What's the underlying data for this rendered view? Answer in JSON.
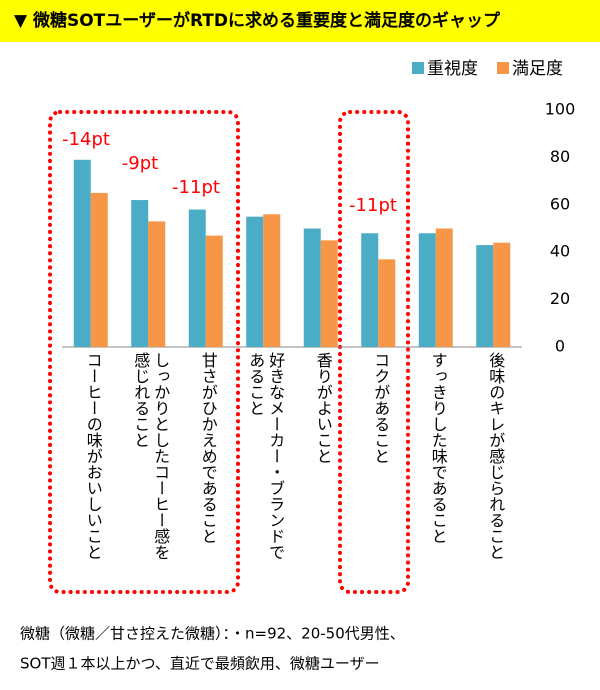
{
  "chart_data": {
    "type": "bar",
    "title": "▼ 微糖SOTユーザーがRTDに求める重要度と満足度のギャップ",
    "categories": [
      "コーヒーの味がおいしいこと",
      "しっかりとしたコーヒー感を感じれること",
      "甘さがひかえめであること",
      "好きなメーカー・ブランドであること",
      "香りがよいこと",
      "コクがあること",
      "すっきりした味であること",
      "後味のキレが感じられること"
    ],
    "series": [
      {
        "name": "重視度",
        "color": "#4bacc6",
        "values": [
          79,
          62,
          58,
          55,
          50,
          48,
          48,
          43
        ]
      },
      {
        "name": "満足度",
        "color": "#f79646",
        "values": [
          65,
          53,
          47,
          56,
          45,
          37,
          50,
          44
        ]
      }
    ],
    "ylim": [
      0,
      100
    ],
    "yticks": [
      0,
      20,
      40,
      60,
      80,
      100
    ],
    "legend": "top-right",
    "annotations": [
      "-14pt",
      "-9pt",
      "-11pt",
      "-11pt"
    ],
    "footnote": [
      "微糖（微糖／甘さ控えた微糖）：・n=92、20-50代男性、",
      "SOT週１本以上かつ、直近で最頻飲用、微糖ユーザー"
    ]
  }
}
